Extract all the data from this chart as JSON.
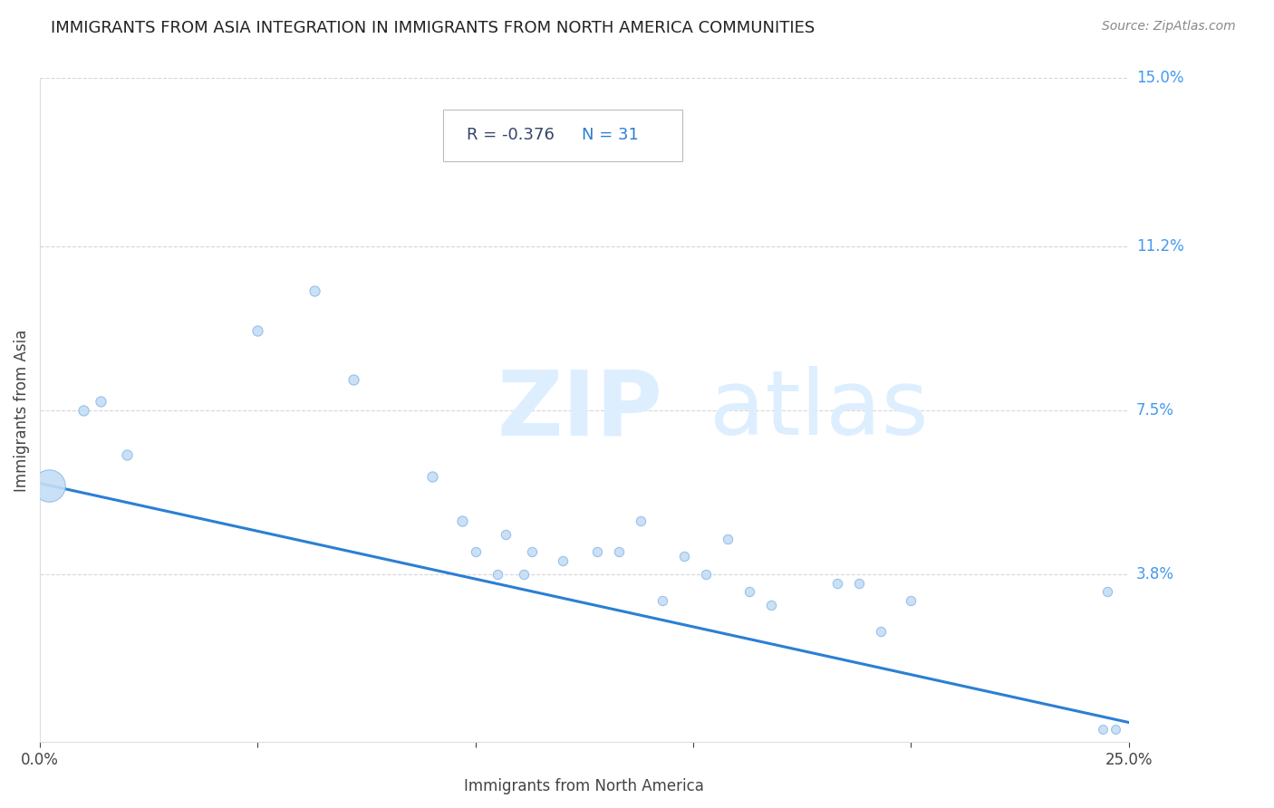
{
  "title": "IMMIGRANTS FROM ASIA INTEGRATION IN IMMIGRANTS FROM NORTH AMERICA COMMUNITIES",
  "source": "Source: ZipAtlas.com",
  "xlabel": "Immigrants from North America",
  "ylabel": "Immigrants from Asia",
  "xlim": [
    0,
    0.25
  ],
  "ylim": [
    0,
    0.15
  ],
  "scatter_color": "#c5ddf5",
  "scatter_edge_color": "#90bce8",
  "line_color": "#2b7fd4",
  "title_color": "#222222",
  "axis_label_color": "#444444",
  "ytick_color": "#4499ee",
  "source_color": "#888888",
  "grid_color": "#cccccc",
  "background_color": "#ffffff",
  "watermark_zip_color": "#ddeeff",
  "watermark_atlas_color": "#ddeeff",
  "stats_R_color": "#334466",
  "stats_N_color": "#2b7fd4",
  "scatter_points": [
    [
      0.002,
      0.058,
      650
    ],
    [
      0.01,
      0.075,
      65
    ],
    [
      0.014,
      0.077,
      65
    ],
    [
      0.02,
      0.065,
      65
    ],
    [
      0.05,
      0.093,
      65
    ],
    [
      0.063,
      0.102,
      65
    ],
    [
      0.072,
      0.082,
      65
    ],
    [
      0.09,
      0.06,
      65
    ],
    [
      0.097,
      0.05,
      65
    ],
    [
      0.1,
      0.043,
      55
    ],
    [
      0.105,
      0.038,
      55
    ],
    [
      0.107,
      0.047,
      55
    ],
    [
      0.111,
      0.038,
      55
    ],
    [
      0.113,
      0.043,
      55
    ],
    [
      0.12,
      0.041,
      55
    ],
    [
      0.128,
      0.043,
      55
    ],
    [
      0.133,
      0.043,
      55
    ],
    [
      0.138,
      0.05,
      55
    ],
    [
      0.143,
      0.032,
      55
    ],
    [
      0.148,
      0.042,
      55
    ],
    [
      0.153,
      0.038,
      55
    ],
    [
      0.158,
      0.046,
      55
    ],
    [
      0.163,
      0.034,
      55
    ],
    [
      0.168,
      0.031,
      55
    ],
    [
      0.183,
      0.036,
      55
    ],
    [
      0.188,
      0.036,
      55
    ],
    [
      0.193,
      0.025,
      55
    ],
    [
      0.2,
      0.032,
      55
    ],
    [
      0.245,
      0.034,
      55
    ],
    [
      0.244,
      0.003,
      50
    ],
    [
      0.247,
      0.003,
      50
    ]
  ],
  "regression_x0": 0.0,
  "regression_x1": 0.25,
  "regression_y0": 0.0585,
  "regression_y1": 0.0045,
  "ytick_positions": [
    0.038,
    0.075,
    0.112,
    0.15
  ],
  "ytick_labels": [
    "3.8%",
    "7.5%",
    "11.2%",
    "15.0%"
  ]
}
